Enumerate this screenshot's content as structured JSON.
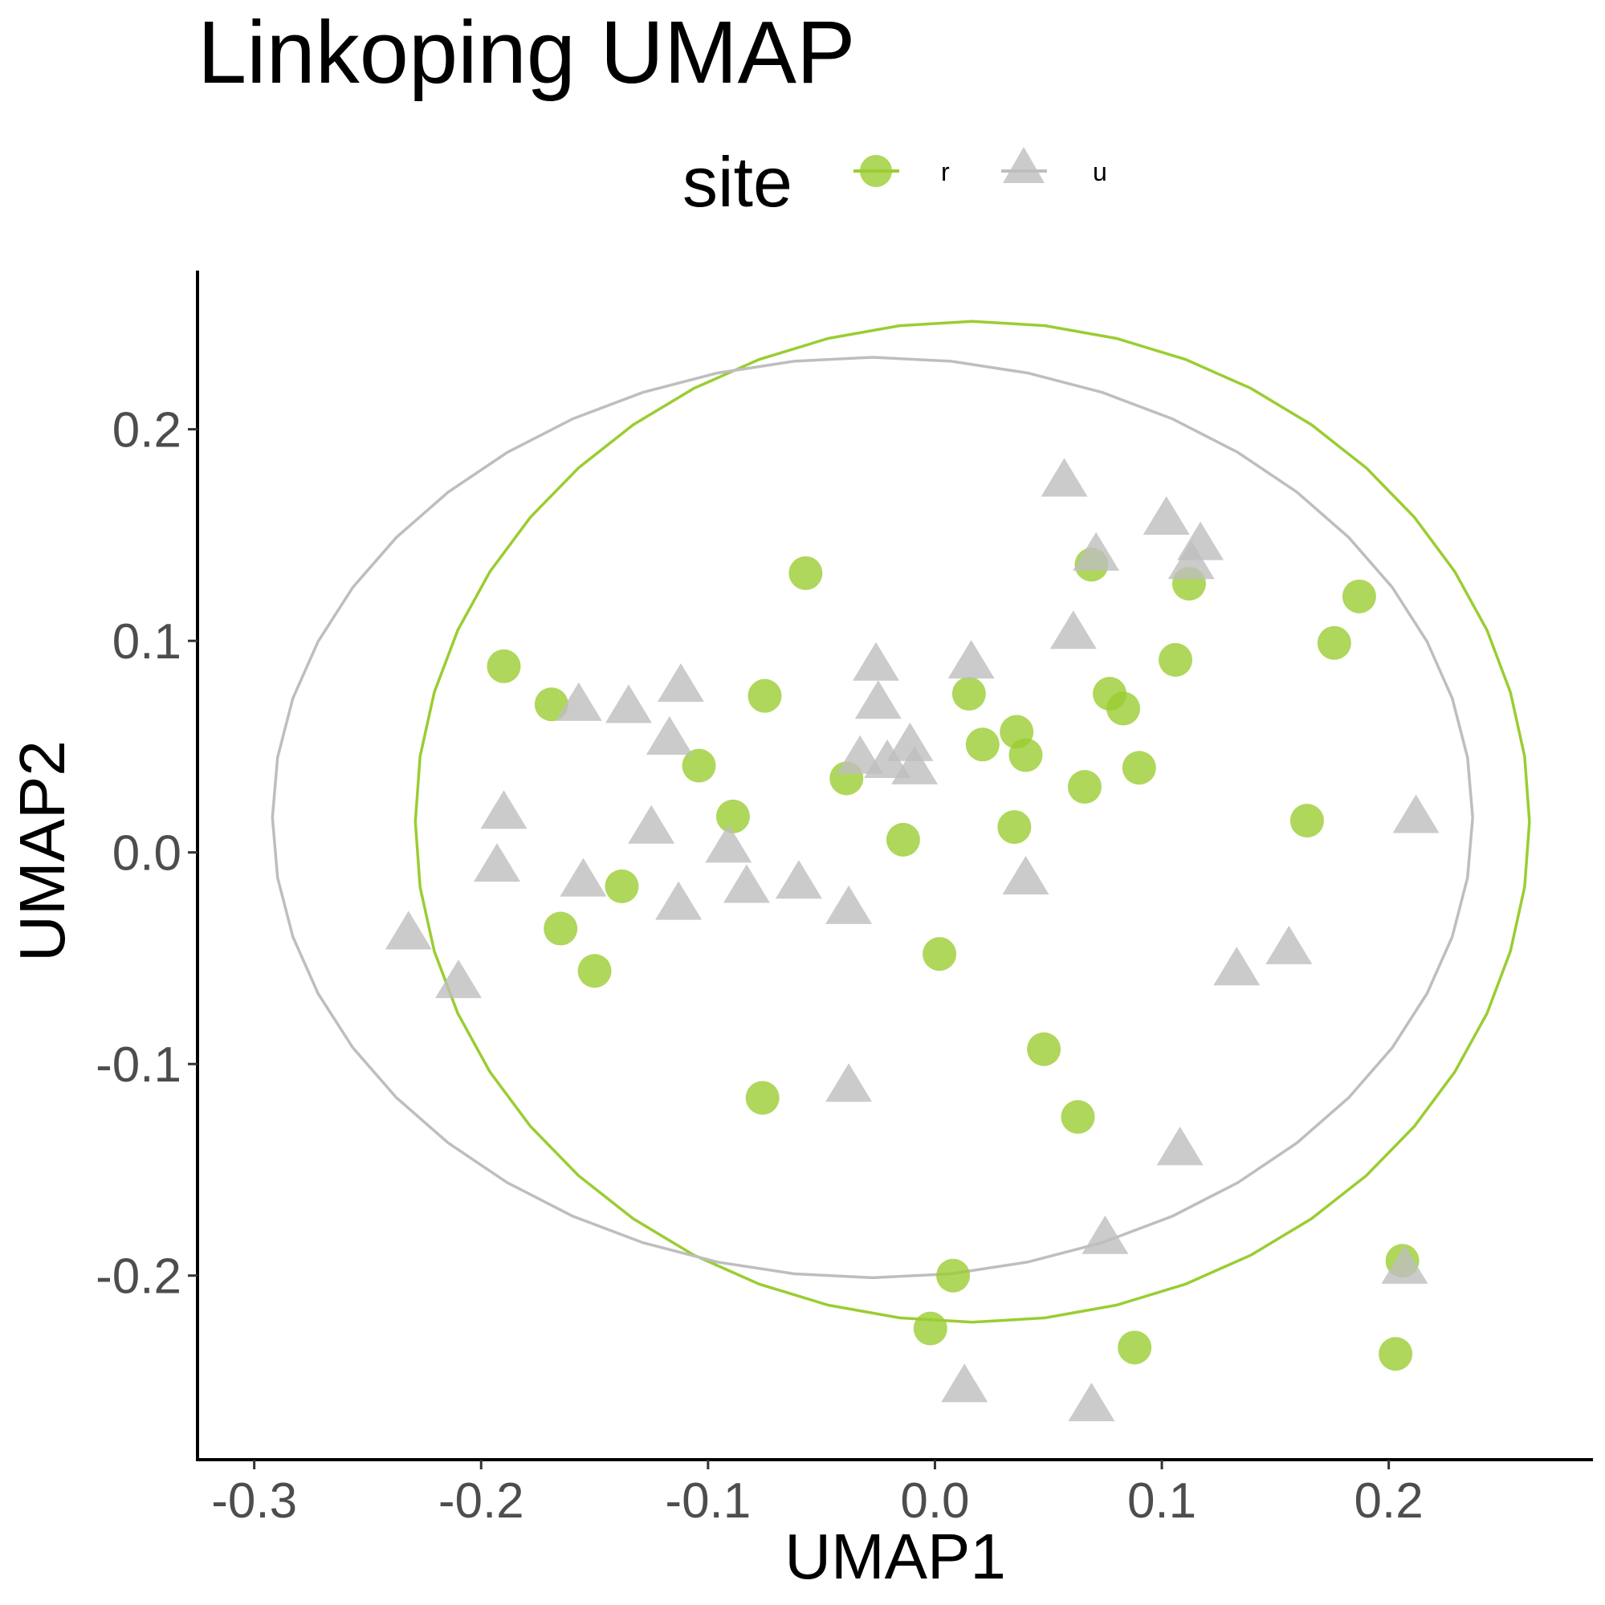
{
  "chart_data": {
    "type": "scatter",
    "title": "Linkoping UMAP",
    "xlabel": "UMAP1",
    "ylabel": "UMAP2",
    "xlim": [
      -0.325,
      0.29
    ],
    "ylim": [
      -0.287,
      0.275
    ],
    "x_ticks": [
      -0.3,
      -0.2,
      -0.1,
      0.0,
      0.1,
      0.2
    ],
    "x_tick_labels": [
      "-0.3",
      "-0.2",
      "-0.1",
      "0.0",
      "0.1",
      "0.2"
    ],
    "y_ticks": [
      -0.2,
      -0.1,
      0.0,
      0.1,
      0.2
    ],
    "y_tick_labels": [
      "-0.2",
      "-0.1",
      "0.0",
      "0.1",
      "0.2"
    ],
    "grid": false,
    "legend": {
      "title": "site",
      "position": "top"
    },
    "series": [
      {
        "name": "r",
        "marker": "circle",
        "color": "#9ACD32",
        "ellipse": {
          "cx": 0.0165,
          "cy": 0.0145,
          "rx": 0.2455,
          "ry": 0.2365
        },
        "points": [
          [
            -0.19,
            0.088
          ],
          [
            -0.169,
            0.07
          ],
          [
            -0.075,
            0.074
          ],
          [
            -0.057,
            0.132
          ],
          [
            -0.104,
            0.041
          ],
          [
            -0.089,
            0.017
          ],
          [
            -0.138,
            -0.016
          ],
          [
            -0.165,
            -0.036
          ],
          [
            -0.15,
            -0.056
          ],
          [
            -0.039,
            0.035
          ],
          [
            -0.014,
            0.006
          ],
          [
            0.015,
            0.075
          ],
          [
            0.021,
            0.051
          ],
          [
            0.036,
            0.057
          ],
          [
            0.04,
            0.046
          ],
          [
            0.035,
            0.012
          ],
          [
            0.066,
            0.031
          ],
          [
            0.069,
            0.136
          ],
          [
            0.077,
            0.075
          ],
          [
            0.083,
            0.068
          ],
          [
            0.09,
            0.04
          ],
          [
            0.106,
            0.091
          ],
          [
            0.112,
            0.127
          ],
          [
            0.176,
            0.099
          ],
          [
            0.187,
            0.121
          ],
          [
            0.164,
            0.015
          ],
          [
            0.002,
            -0.048
          ],
          [
            0.048,
            -0.093
          ],
          [
            -0.076,
            -0.116
          ],
          [
            0.063,
            -0.125
          ],
          [
            0.008,
            -0.2
          ],
          [
            -0.002,
            -0.225
          ],
          [
            0.088,
            -0.234
          ],
          [
            0.206,
            -0.193
          ],
          [
            0.203,
            -0.237
          ]
        ]
      },
      {
        "name": "u",
        "marker": "triangle",
        "color": "#BEBEBE",
        "ellipse": {
          "cx": -0.0275,
          "cy": 0.0165,
          "rx": 0.2645,
          "ry": 0.2175
        },
        "points": [
          [
            -0.19,
            0.018
          ],
          [
            -0.193,
            -0.007
          ],
          [
            -0.232,
            -0.039
          ],
          [
            -0.21,
            -0.062
          ],
          [
            -0.157,
            0.069
          ],
          [
            -0.135,
            0.068
          ],
          [
            -0.112,
            0.078
          ],
          [
            -0.117,
            0.053
          ],
          [
            -0.125,
            0.011
          ],
          [
            -0.155,
            -0.014
          ],
          [
            -0.113,
            -0.025
          ],
          [
            -0.091,
            0.002
          ],
          [
            -0.083,
            -0.017
          ],
          [
            -0.06,
            -0.015
          ],
          [
            -0.038,
            -0.027
          ],
          [
            -0.026,
            0.088
          ],
          [
            -0.025,
            0.07
          ],
          [
            -0.033,
            0.044
          ],
          [
            -0.021,
            0.042
          ],
          [
            -0.011,
            0.05
          ],
          [
            -0.009,
            0.039
          ],
          [
            0.016,
            0.089
          ],
          [
            0.04,
            -0.013
          ],
          [
            0.057,
            0.175
          ],
          [
            0.061,
            0.103
          ],
          [
            0.071,
            0.14
          ],
          [
            0.102,
            0.157
          ],
          [
            0.117,
            0.145
          ],
          [
            0.113,
            0.136
          ],
          [
            0.212,
            0.016
          ],
          [
            0.133,
            -0.056
          ],
          [
            0.156,
            -0.046
          ],
          [
            -0.038,
            -0.111
          ],
          [
            0.108,
            -0.141
          ],
          [
            0.075,
            -0.183
          ],
          [
            0.207,
            -0.197
          ],
          [
            0.013,
            -0.253
          ],
          [
            0.069,
            -0.262
          ]
        ]
      }
    ]
  }
}
